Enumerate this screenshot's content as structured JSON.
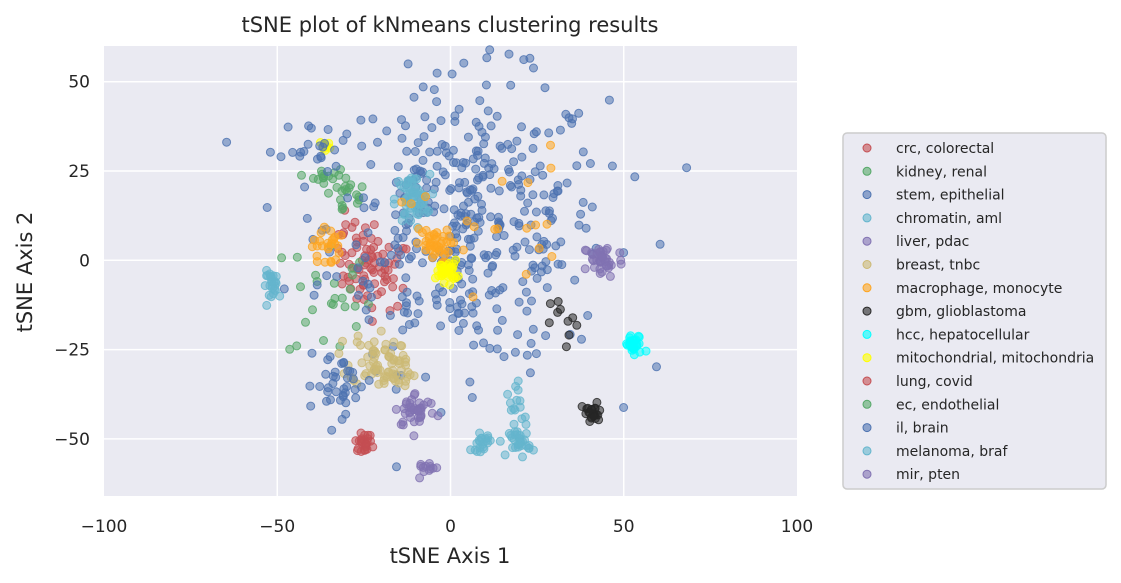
{
  "chart_data": {
    "type": "scatter",
    "title": "tSNE plot of kNmeans clustering results",
    "xlabel": "tSNE Axis 1",
    "ylabel": "tSNE Axis 2",
    "xlim": [
      -100,
      100
    ],
    "ylim": [
      -66,
      60
    ],
    "xticks": [
      -100,
      -50,
      0,
      50,
      100
    ],
    "yticks": [
      -50,
      -25,
      0,
      25,
      50
    ],
    "xtick_labels": [
      "−100",
      "−50",
      "0",
      "50",
      "100"
    ],
    "ytick_labels": [
      "−50",
      "−25",
      "0",
      "25",
      "50"
    ],
    "grid": true,
    "background_color": "#eaeaf2",
    "legend_position": "right",
    "series": [
      {
        "name": "crc, colorectal",
        "color": "#c44e52",
        "clusters": [
          {
            "center": [
              -21,
              -4
            ],
            "spread": [
              5,
              5
            ],
            "n": 55
          },
          {
            "center": [
              -28,
              4
            ],
            "spread": [
              4,
              4
            ],
            "n": 25
          }
        ]
      },
      {
        "name": "kidney, renal",
        "color": "#55a868",
        "clusters": [
          {
            "center": [
              -30,
              18
            ],
            "spread": [
              3,
              3
            ],
            "n": 20
          },
          {
            "center": [
              -35,
              -10
            ],
            "spread": [
              6,
              10
            ],
            "n": 25
          }
        ]
      },
      {
        "name": "stem, epithelial",
        "color": "#4c72b0",
        "clusters": [
          {
            "center": [
              5,
              10
            ],
            "spread": [
              20,
              20
            ],
            "n": 420
          }
        ]
      },
      {
        "name": "chromatin, aml",
        "color": "#64b5cd",
        "clusters": [
          {
            "center": [
              -11,
              17
            ],
            "spread": [
              2.5,
              3.5
            ],
            "n": 55
          }
        ]
      },
      {
        "name": "liver, pdac",
        "color": "#8172b2",
        "clusters": [
          {
            "center": [
              44,
              0
            ],
            "spread": [
              3,
              2.5
            ],
            "n": 40
          },
          {
            "center": [
              -10,
              -42
            ],
            "spread": [
              3,
              2.5
            ],
            "n": 40
          }
        ]
      },
      {
        "name": "breast, tnbc",
        "color": "#ccb974",
        "clusters": [
          {
            "center": [
              -22,
              -27
            ],
            "spread": [
              3.5,
              4
            ],
            "n": 45
          },
          {
            "center": [
              -16,
              -31
            ],
            "spread": [
              3,
              3
            ],
            "n": 30
          }
        ]
      },
      {
        "name": "macrophage, monocyte",
        "color": "#fea520",
        "clusters": [
          {
            "center": [
              -5,
              4
            ],
            "spread": [
              2.5,
              2.5
            ],
            "n": 40
          },
          {
            "center": [
              -36,
              4
            ],
            "spread": [
              2,
              3
            ],
            "n": 25
          },
          {
            "center": [
              12,
              12
            ],
            "spread": [
              12,
              10
            ],
            "n": 20
          }
        ]
      },
      {
        "name": "gbm, glioblastoma",
        "color": "#262626",
        "clusters": [
          {
            "center": [
              41,
              -43
            ],
            "spread": [
              1.5,
              1.5
            ],
            "n": 25
          },
          {
            "center": [
              33,
              -18
            ],
            "spread": [
              2,
              4
            ],
            "n": 10
          }
        ]
      },
      {
        "name": "hcc, hepatocellular",
        "color": "#00ffff",
        "clusters": [
          {
            "center": [
              53,
              -24
            ],
            "spread": [
              1.5,
              1.5
            ],
            "n": 30
          }
        ]
      },
      {
        "name": "mitochondrial, mitochondria",
        "color": "#ffff00",
        "clusters": [
          {
            "center": [
              -1,
              -3
            ],
            "spread": [
              1.5,
              1.5
            ],
            "n": 35
          },
          {
            "center": [
              -36,
              32
            ],
            "spread": [
              0.8,
              0.8
            ],
            "n": 8
          }
        ]
      },
      {
        "name": "lung, covid",
        "color": "#c44e52",
        "clusters": [
          {
            "center": [
              -25,
              -51
            ],
            "spread": [
              1.2,
              1.2
            ],
            "n": 25
          }
        ]
      },
      {
        "name": "ec, endothelial",
        "color": "#55a868",
        "clusters": [
          {
            "center": [
              -37,
              23
            ],
            "spread": [
              2,
              2
            ],
            "n": 12
          }
        ]
      },
      {
        "name": "il, brain",
        "color": "#4c72b0",
        "clusters": [
          {
            "center": [
              -32,
              -35
            ],
            "spread": [
              5,
              4
            ],
            "n": 35
          },
          {
            "center": [
              -40,
              31
            ],
            "spread": [
              4,
              4
            ],
            "n": 20
          }
        ]
      },
      {
        "name": "melanoma, braf",
        "color": "#64b5cd",
        "clusters": [
          {
            "center": [
              -51,
              -7
            ],
            "spread": [
              1.5,
              2
            ],
            "n": 25
          },
          {
            "center": [
              20,
              -51
            ],
            "spread": [
              1.5,
              2
            ],
            "n": 30
          },
          {
            "center": [
              9,
              -51
            ],
            "spread": [
              1.5,
              1.2
            ],
            "n": 20
          },
          {
            "center": [
              20,
              -41
            ],
            "spread": [
              2,
              3
            ],
            "n": 15
          }
        ]
      },
      {
        "name": "mir, pten",
        "color": "#8172b2",
        "clusters": [
          {
            "center": [
              -7,
              -58
            ],
            "spread": [
              1.5,
              1
            ],
            "n": 12
          }
        ]
      }
    ]
  }
}
